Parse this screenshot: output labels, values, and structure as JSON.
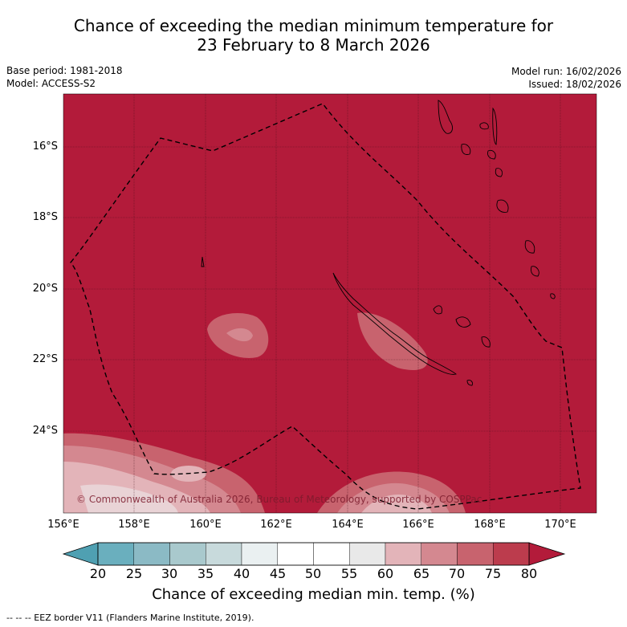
{
  "title": {
    "line1": "Chance of exceeding the median minimum temperature for",
    "line2": "23 February to 8 March 2026"
  },
  "meta": {
    "base_period": "Base period: 1981-2018",
    "model": "Model: ACCESS-S2",
    "model_run": "Model run: 16/02/2026",
    "issued": "Issued: 18/02/2026"
  },
  "map": {
    "background_color": "#b31b3a",
    "lat_labels": [
      "16°S",
      "18°S",
      "20°S",
      "22°S",
      "24°S"
    ],
    "lon_labels": [
      "156°E",
      "158°E",
      "160°E",
      "162°E",
      "164°E",
      "166°E",
      "168°E",
      "170°E"
    ],
    "copyright": "© Commonwealth of Australia 2026, Bureau of Meteorology, supported by COSPPac"
  },
  "colorbar": {
    "ticks": [
      "20",
      "25",
      "30",
      "35",
      "40",
      "45",
      "50",
      "55",
      "60",
      "65",
      "70",
      "75",
      "80"
    ],
    "colors": [
      "#4fa0b2",
      "#6aafbe",
      "#8bbac5",
      "#a9c9cd",
      "#c8dadc",
      "#eaf0f1",
      "#ffffff",
      "#ffffff",
      "#e9e9e9",
      "#e3b4b9",
      "#d48890",
      "#c8636e",
      "#bc3c4d"
    ],
    "label": "Chance of exceeding median min. temp. (%)"
  },
  "footnote": "-- -- -- EEZ border V11 (Flanders Marine Institute, 2019)."
}
